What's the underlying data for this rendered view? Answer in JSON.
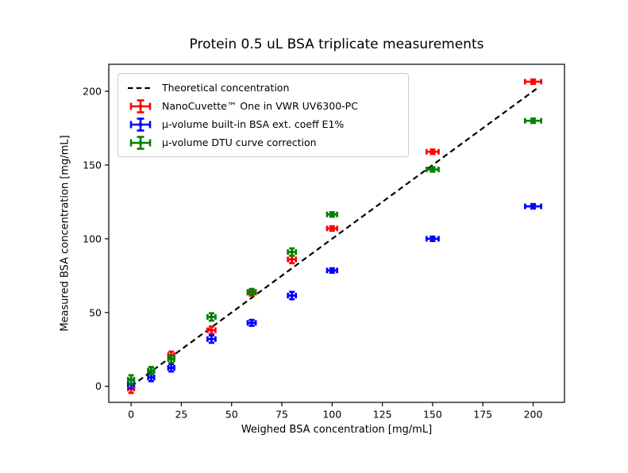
{
  "window": {
    "background": "#ffffff"
  },
  "chart_data": {
    "type": "scatter",
    "title": "Protein 0.5 uL BSA triplicate measurements",
    "xlabel": "Weighed BSA concentration [mg/mL]",
    "ylabel": "Measured BSA concentration [mg/mL]",
    "xlim": [
      -11.1,
      215.6
    ],
    "ylim": [
      -10.9,
      218.3
    ],
    "xticks": [
      0,
      25,
      50,
      75,
      100,
      125,
      150,
      175,
      200
    ],
    "yticks": [
      0,
      50,
      100,
      150,
      200
    ],
    "grid": false,
    "legend_position": "upper-left",
    "axis_color": "#000000",
    "x": [
      0,
      10,
      20,
      40,
      60,
      80,
      100,
      150,
      200
    ],
    "xerr": [
      1.5,
      1.5,
      1.5,
      2,
      2,
      2,
      2.5,
      3,
      4
    ],
    "yerr": [
      3,
      2.5,
      2.5,
      2.5,
      2,
      2.5,
      1.5,
      1.5,
      1.5
    ],
    "theoretical": {
      "label": "Theoretical concentration",
      "color": "#000000",
      "line_style": "dashed",
      "x": [
        0,
        203
      ],
      "y": [
        0,
        203
      ]
    },
    "series": [
      {
        "name": "NanoCuvette™ One in VWR UV6300-PC",
        "color": "#ff0000",
        "values": [
          -1.5,
          10.5,
          21,
          38,
          63.5,
          86,
          107,
          159,
          206.5
        ]
      },
      {
        "name": "µ-volume built-in BSA ext. coeff E1%",
        "color": "#0000ff",
        "values": [
          1.5,
          6,
          12.5,
          32,
          43,
          61.5,
          78.5,
          100,
          122
        ]
      },
      {
        "name": "µ-volume DTU curve correction",
        "color": "#008000",
        "values": [
          4.5,
          10.5,
          18.5,
          47,
          64,
          91,
          116.5,
          147,
          180
        ]
      }
    ]
  }
}
